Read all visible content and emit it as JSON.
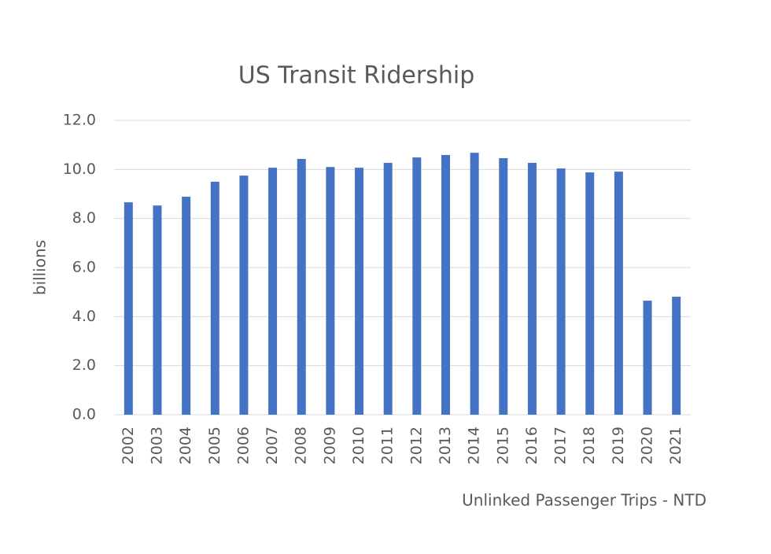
{
  "chart_data": {
    "type": "bar",
    "title": "US Transit Ridership",
    "y_label": "billions",
    "source": "Unlinked Passenger Trips - NTD",
    "categories": [
      "2002",
      "2003",
      "2004",
      "2005",
      "2006",
      "2007",
      "2008",
      "2009",
      "2010",
      "2011",
      "2012",
      "2013",
      "2014",
      "2015",
      "2016",
      "2017",
      "2018",
      "2019",
      "2020",
      "2021"
    ],
    "values": [
      8.66,
      8.53,
      8.89,
      9.5,
      9.75,
      10.07,
      10.43,
      10.1,
      10.07,
      10.27,
      10.49,
      10.59,
      10.68,
      10.46,
      10.27,
      10.04,
      9.88,
      9.91,
      4.65,
      4.81
    ],
    "color": "#4472c4",
    "ylim": [
      0,
      12
    ],
    "yticks": [
      {
        "value": 0,
        "label": "0.0"
      },
      {
        "value": 2,
        "label": "2.0"
      },
      {
        "value": 4,
        "label": "4.0"
      },
      {
        "value": 6,
        "label": "6.0"
      },
      {
        "value": 8,
        "label": "8.0"
      },
      {
        "value": 10,
        "label": "10.0"
      },
      {
        "value": 12,
        "label": "12.0"
      }
    ],
    "grid": true
  }
}
